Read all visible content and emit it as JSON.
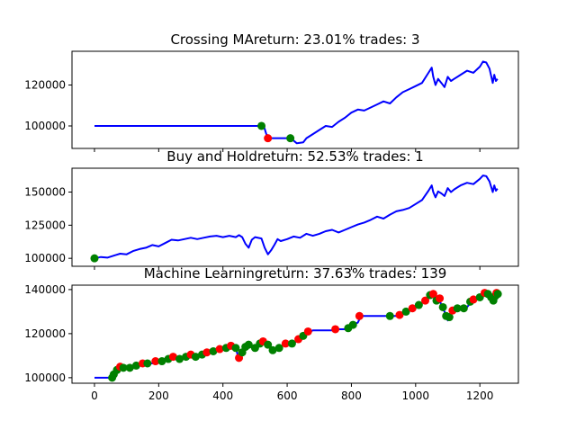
{
  "chart_data": [
    {
      "type": "line",
      "title": "Crossing MAreturn: 23.01% trades: 3",
      "x_range": [
        0,
        1258
      ],
      "ylim": [
        89000,
        136500
      ],
      "yticks": [
        100000,
        120000
      ],
      "ytick_labels": [
        "100000",
        "120000"
      ],
      "show_xtick_labels": false,
      "line_color": "#0000ff",
      "series_x": [
        0,
        60,
        120,
        180,
        240,
        300,
        360,
        420,
        480,
        520,
        528,
        535,
        545,
        560,
        580,
        600,
        615,
        630,
        650,
        660,
        680,
        700,
        720,
        740,
        760,
        780,
        800,
        820,
        840,
        860,
        880,
        900,
        920,
        940,
        960,
        980,
        1000,
        1020,
        1040,
        1050,
        1055,
        1062,
        1070,
        1080,
        1090,
        1100,
        1110,
        1120,
        1140,
        1160,
        1180,
        1200,
        1210,
        1220,
        1230,
        1240,
        1245,
        1250,
        1255
      ],
      "series_y": [
        100000,
        100000,
        100000,
        100000,
        100000,
        100000,
        100000,
        100000,
        100000,
        100000,
        99500,
        96000,
        94000,
        94000,
        94000,
        94000,
        93500,
        91500,
        92000,
        94000,
        96000,
        98000,
        100000,
        99500,
        102000,
        104000,
        106500,
        108000,
        107500,
        109000,
        110500,
        112000,
        111000,
        114000,
        116500,
        118000,
        119500,
        121000,
        126000,
        128500,
        124000,
        120000,
        123000,
        121000,
        119000,
        124000,
        122000,
        123000,
        125000,
        127000,
        126000,
        129000,
        131500,
        131000,
        128000,
        121000,
        125000,
        122000,
        123000
      ],
      "markers": [
        {
          "x": 520,
          "y": 100000,
          "color": "#008000"
        },
        {
          "x": 540,
          "y": 94000,
          "color": "#ff0000"
        },
        {
          "x": 610,
          "y": 94000,
          "color": "#008000"
        }
      ]
    },
    {
      "type": "line",
      "title": "Buy and Holdreturn: 52.53% trades: 1",
      "x_range": [
        0,
        1258
      ],
      "ylim": [
        94000,
        168000
      ],
      "yticks": [
        100000,
        125000,
        150000
      ],
      "ytick_labels": [
        "100000",
        "125000",
        "150000"
      ],
      "show_xtick_labels": false,
      "line_color": "#0000ff",
      "series_x": [
        0,
        20,
        40,
        60,
        80,
        100,
        120,
        140,
        160,
        180,
        200,
        220,
        240,
        260,
        280,
        300,
        320,
        340,
        360,
        380,
        400,
        420,
        440,
        450,
        460,
        470,
        480,
        490,
        500,
        520,
        530,
        540,
        550,
        560,
        570,
        580,
        600,
        620,
        640,
        660,
        680,
        700,
        720,
        740,
        760,
        780,
        800,
        820,
        840,
        860,
        880,
        900,
        920,
        940,
        960,
        980,
        1000,
        1020,
        1040,
        1050,
        1055,
        1062,
        1070,
        1080,
        1090,
        1100,
        1110,
        1120,
        1140,
        1160,
        1180,
        1200,
        1210,
        1220,
        1230,
        1240,
        1245,
        1250,
        1255
      ],
      "series_y": [
        100000,
        101000,
        100500,
        102000,
        103500,
        103000,
        105500,
        107000,
        108000,
        110000,
        109000,
        111500,
        114000,
        113500,
        114500,
        115500,
        114500,
        115500,
        116500,
        117000,
        116000,
        117000,
        116000,
        117500,
        116000,
        111000,
        108000,
        114000,
        116000,
        115000,
        108000,
        103000,
        106000,
        110000,
        114500,
        113000,
        114500,
        116500,
        115500,
        118500,
        117000,
        118500,
        120500,
        121500,
        119500,
        121500,
        123500,
        125500,
        127000,
        129000,
        131500,
        130000,
        133000,
        135500,
        136500,
        138000,
        141000,
        144000,
        151000,
        155000,
        150000,
        146000,
        150500,
        149000,
        147000,
        153000,
        150000,
        152000,
        155000,
        157000,
        156000,
        160000,
        162500,
        162000,
        158000,
        150000,
        155000,
        151000,
        152500
      ],
      "markers": [
        {
          "x": 0,
          "y": 100000,
          "color": "#008000"
        }
      ]
    },
    {
      "type": "line",
      "title": "Machine Learningreturn: 37.63% trades: 139",
      "x_range": [
        0,
        1258
      ],
      "ylim": [
        97500,
        142000
      ],
      "yticks": [
        100000,
        120000,
        140000
      ],
      "ytick_labels": [
        "100000",
        "120000",
        "140000"
      ],
      "xlim": [
        -70,
        1320
      ],
      "xticks": [
        0,
        200,
        400,
        600,
        800,
        1000,
        1200
      ],
      "xtick_labels": [
        "0",
        "200",
        "400",
        "600",
        "800",
        "1000",
        "1200"
      ],
      "line_color": "#0000ff",
      "series_x": [
        0,
        40,
        55,
        60,
        70,
        80,
        100,
        120,
        140,
        160,
        180,
        200,
        220,
        240,
        260,
        280,
        300,
        320,
        340,
        360,
        380,
        400,
        420,
        440,
        450,
        460,
        470,
        480,
        500,
        520,
        540,
        560,
        580,
        600,
        620,
        640,
        660,
        680,
        700,
        720,
        740,
        760,
        780,
        800,
        820,
        830,
        840,
        860,
        880,
        900,
        920,
        940,
        960,
        980,
        1000,
        1020,
        1040,
        1050,
        1055,
        1062,
        1070,
        1080,
        1090,
        1100,
        1110,
        1120,
        1140,
        1160,
        1180,
        1200,
        1210,
        1220,
        1230,
        1240,
        1245,
        1250,
        1255
      ],
      "series_y": [
        100000,
        100000,
        100000,
        101000,
        103000,
        104500,
        104000,
        105000,
        106000,
        107000,
        106500,
        107500,
        108000,
        109000,
        108000,
        109500,
        110500,
        109500,
        111000,
        112000,
        112500,
        113500,
        114500,
        113500,
        108000,
        112000,
        114500,
        115000,
        113500,
        116000,
        115000,
        112000,
        114000,
        116000,
        115500,
        118000,
        120000,
        121500,
        121500,
        121500,
        121500,
        122000,
        122000,
        123500,
        125000,
        128000,
        128000,
        128000,
        128000,
        128000,
        128000,
        128000,
        129500,
        131000,
        132500,
        134000,
        136500,
        138500,
        137000,
        134000,
        137000,
        133000,
        130000,
        126000,
        130000,
        131500,
        131000,
        132000,
        135500,
        136000,
        137500,
        138500,
        138000,
        137000,
        135000,
        136500,
        138000
      ],
      "markers": [
        {
          "x": 55,
          "y": 100000,
          "color": "#008000"
        },
        {
          "x": 60,
          "y": 101500,
          "color": "#008000"
        },
        {
          "x": 70,
          "y": 103500,
          "color": "#008000"
        },
        {
          "x": 80,
          "y": 105000,
          "color": "#ff0000"
        },
        {
          "x": 90,
          "y": 104500,
          "color": "#008000"
        },
        {
          "x": 110,
          "y": 104500,
          "color": "#008000"
        },
        {
          "x": 130,
          "y": 105500,
          "color": "#008000"
        },
        {
          "x": 150,
          "y": 106500,
          "color": "#ff0000"
        },
        {
          "x": 165,
          "y": 106500,
          "color": "#008000"
        },
        {
          "x": 190,
          "y": 107500,
          "color": "#ff0000"
        },
        {
          "x": 210,
          "y": 107500,
          "color": "#008000"
        },
        {
          "x": 230,
          "y": 108500,
          "color": "#008000"
        },
        {
          "x": 245,
          "y": 109500,
          "color": "#ff0000"
        },
        {
          "x": 265,
          "y": 108500,
          "color": "#008000"
        },
        {
          "x": 285,
          "y": 109500,
          "color": "#008000"
        },
        {
          "x": 300,
          "y": 110500,
          "color": "#ff0000"
        },
        {
          "x": 315,
          "y": 109500,
          "color": "#008000"
        },
        {
          "x": 335,
          "y": 110500,
          "color": "#008000"
        },
        {
          "x": 350,
          "y": 111500,
          "color": "#ff0000"
        },
        {
          "x": 370,
          "y": 112000,
          "color": "#008000"
        },
        {
          "x": 390,
          "y": 113000,
          "color": "#ff0000"
        },
        {
          "x": 410,
          "y": 113500,
          "color": "#008000"
        },
        {
          "x": 425,
          "y": 114500,
          "color": "#ff0000"
        },
        {
          "x": 440,
          "y": 113500,
          "color": "#008000"
        },
        {
          "x": 450,
          "y": 109000,
          "color": "#ff0000"
        },
        {
          "x": 460,
          "y": 111500,
          "color": "#008000"
        },
        {
          "x": 470,
          "y": 114000,
          "color": "#008000"
        },
        {
          "x": 480,
          "y": 115000,
          "color": "#008000"
        },
        {
          "x": 500,
          "y": 113500,
          "color": "#008000"
        },
        {
          "x": 515,
          "y": 115500,
          "color": "#008000"
        },
        {
          "x": 525,
          "y": 116500,
          "color": "#ff0000"
        },
        {
          "x": 540,
          "y": 115000,
          "color": "#008000"
        },
        {
          "x": 555,
          "y": 112500,
          "color": "#008000"
        },
        {
          "x": 575,
          "y": 113500,
          "color": "#008000"
        },
        {
          "x": 595,
          "y": 115500,
          "color": "#ff0000"
        },
        {
          "x": 615,
          "y": 115500,
          "color": "#008000"
        },
        {
          "x": 635,
          "y": 117500,
          "color": "#ff0000"
        },
        {
          "x": 650,
          "y": 119000,
          "color": "#008000"
        },
        {
          "x": 665,
          "y": 121000,
          "color": "#ff0000"
        },
        {
          "x": 750,
          "y": 122000,
          "color": "#ff0000"
        },
        {
          "x": 790,
          "y": 122500,
          "color": "#008000"
        },
        {
          "x": 805,
          "y": 124000,
          "color": "#008000"
        },
        {
          "x": 825,
          "y": 128000,
          "color": "#ff0000"
        },
        {
          "x": 920,
          "y": 128000,
          "color": "#008000"
        },
        {
          "x": 950,
          "y": 128500,
          "color": "#ff0000"
        },
        {
          "x": 970,
          "y": 130000,
          "color": "#008000"
        },
        {
          "x": 990,
          "y": 131500,
          "color": "#ff0000"
        },
        {
          "x": 1010,
          "y": 133000,
          "color": "#008000"
        },
        {
          "x": 1030,
          "y": 135000,
          "color": "#ff0000"
        },
        {
          "x": 1045,
          "y": 137500,
          "color": "#008000"
        },
        {
          "x": 1055,
          "y": 138000,
          "color": "#ff0000"
        },
        {
          "x": 1065,
          "y": 135000,
          "color": "#008000"
        },
        {
          "x": 1075,
          "y": 136000,
          "color": "#ff0000"
        },
        {
          "x": 1085,
          "y": 132000,
          "color": "#008000"
        },
        {
          "x": 1095,
          "y": 128000,
          "color": "#008000"
        },
        {
          "x": 1105,
          "y": 127500,
          "color": "#008000"
        },
        {
          "x": 1115,
          "y": 130500,
          "color": "#ff0000"
        },
        {
          "x": 1130,
          "y": 131500,
          "color": "#008000"
        },
        {
          "x": 1150,
          "y": 131500,
          "color": "#008000"
        },
        {
          "x": 1170,
          "y": 134500,
          "color": "#008000"
        },
        {
          "x": 1180,
          "y": 135500,
          "color": "#ff0000"
        },
        {
          "x": 1200,
          "y": 136500,
          "color": "#008000"
        },
        {
          "x": 1215,
          "y": 138500,
          "color": "#ff0000"
        },
        {
          "x": 1225,
          "y": 138000,
          "color": "#008000"
        },
        {
          "x": 1235,
          "y": 136500,
          "color": "#008000"
        },
        {
          "x": 1242,
          "y": 135000,
          "color": "#008000"
        },
        {
          "x": 1248,
          "y": 137000,
          "color": "#008000"
        },
        {
          "x": 1252,
          "y": 138500,
          "color": "#ff0000"
        },
        {
          "x": 1256,
          "y": 138000,
          "color": "#008000"
        }
      ]
    }
  ]
}
